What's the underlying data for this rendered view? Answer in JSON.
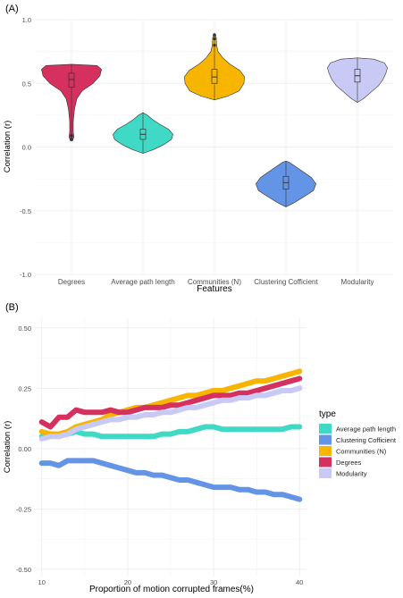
{
  "panels": [
    {
      "label": "(A)"
    },
    {
      "label": "(B)"
    }
  ],
  "chart_data": [
    {
      "panel": "(A)",
      "type": "violin",
      "title": "",
      "xlabel": "Features",
      "ylabel": "Correlation (r)",
      "ylim": [
        -1.0,
        1.0
      ],
      "yticks": [
        -1.0,
        -0.5,
        0.0,
        0.5,
        1.0
      ],
      "ytick_labels": [
        "-1.0",
        "-0.5",
        "0.0",
        "0.5",
        "1.0"
      ],
      "grid": true,
      "categories": [
        "Degrees",
        "Average path length",
        "Communities (N)",
        "Clustering Cofficient",
        "Modularity"
      ],
      "colors": [
        "#d6305f",
        "#3fd9c6",
        "#f7b500",
        "#6494e6",
        "#c9c9f5"
      ],
      "stats": [
        {
          "name": "Degrees",
          "min": 0.05,
          "q1": 0.47,
          "median": 0.53,
          "q3": 0.58,
          "max": 0.65,
          "outliers": [
            0.06,
            0.09
          ]
        },
        {
          "name": "Average path length",
          "min": -0.05,
          "q1": 0.06,
          "median": 0.1,
          "q3": 0.14,
          "max": 0.27,
          "outliers": []
        },
        {
          "name": "Communities (N)",
          "min": 0.37,
          "q1": 0.5,
          "median": 0.55,
          "q3": 0.61,
          "max": 0.89,
          "outliers": [
            0.8,
            0.85,
            0.88
          ]
        },
        {
          "name": "Clustering Cofficient",
          "min": -0.47,
          "q1": -0.33,
          "median": -0.28,
          "q3": -0.23,
          "max": -0.11,
          "outliers": []
        },
        {
          "name": "Modularity",
          "min": 0.35,
          "q1": 0.51,
          "median": 0.56,
          "q3": 0.61,
          "max": 0.7,
          "outliers": []
        }
      ],
      "density": [
        [
          [
            0.05,
            0.04
          ],
          [
            0.08,
            0.08
          ],
          [
            0.12,
            0.06
          ],
          [
            0.2,
            0.06
          ],
          [
            0.3,
            0.1
          ],
          [
            0.38,
            0.18
          ],
          [
            0.44,
            0.35
          ],
          [
            0.5,
            0.72
          ],
          [
            0.56,
            0.95
          ],
          [
            0.61,
            1.0
          ],
          [
            0.64,
            0.85
          ],
          [
            0.65,
            0.0
          ]
        ],
        [
          [
            -0.05,
            0.0
          ],
          [
            -0.02,
            0.35
          ],
          [
            0.02,
            0.7
          ],
          [
            0.06,
            0.95
          ],
          [
            0.1,
            1.0
          ],
          [
            0.14,
            0.85
          ],
          [
            0.18,
            0.55
          ],
          [
            0.22,
            0.3
          ],
          [
            0.25,
            0.15
          ],
          [
            0.27,
            0.0
          ]
        ],
        [
          [
            0.37,
            0.0
          ],
          [
            0.4,
            0.45
          ],
          [
            0.44,
            0.82
          ],
          [
            0.5,
            0.98
          ],
          [
            0.55,
            1.0
          ],
          [
            0.6,
            0.85
          ],
          [
            0.65,
            0.52
          ],
          [
            0.7,
            0.28
          ],
          [
            0.75,
            0.12
          ],
          [
            0.8,
            0.07
          ],
          [
            0.86,
            0.06
          ],
          [
            0.89,
            0.0
          ]
        ],
        [
          [
            -0.47,
            0.0
          ],
          [
            -0.44,
            0.25
          ],
          [
            -0.39,
            0.6
          ],
          [
            -0.34,
            0.92
          ],
          [
            -0.29,
            1.0
          ],
          [
            -0.24,
            0.85
          ],
          [
            -0.19,
            0.55
          ],
          [
            -0.15,
            0.3
          ],
          [
            -0.12,
            0.12
          ],
          [
            -0.11,
            0.0
          ]
        ],
        [
          [
            0.35,
            0.0
          ],
          [
            0.38,
            0.2
          ],
          [
            0.43,
            0.45
          ],
          [
            0.48,
            0.7
          ],
          [
            0.53,
            0.85
          ],
          [
            0.58,
            0.95
          ],
          [
            0.62,
            1.0
          ],
          [
            0.66,
            0.9
          ],
          [
            0.69,
            0.55
          ],
          [
            0.7,
            0.0
          ]
        ]
      ]
    },
    {
      "panel": "(B)",
      "type": "line",
      "title": "",
      "xlabel": "Proportion of motion corrupted frames(%)",
      "ylabel": "Correlation (r)",
      "xlim": [
        9.3,
        40.8
      ],
      "ylim": [
        -0.53,
        0.54
      ],
      "xticks": [
        10,
        20,
        30,
        40
      ],
      "xtick_labels": [
        "10",
        "20",
        "30",
        "40"
      ],
      "yticks": [
        -0.5,
        -0.25,
        0.0,
        0.25,
        0.5
      ],
      "ytick_labels": [
        "-0.50",
        "-0.25",
        "0.00",
        "0.25",
        "0.50"
      ],
      "grid": true,
      "legend_title": "type",
      "legend_position": "right",
      "x": [
        10,
        11,
        12,
        13,
        14,
        15,
        16,
        17,
        18,
        19,
        20,
        21,
        22,
        23,
        24,
        25,
        26,
        27,
        28,
        29,
        30,
        31,
        32,
        33,
        34,
        35,
        36,
        37,
        38,
        39,
        40
      ],
      "series": [
        {
          "name": "Average path length",
          "color": "#3fd9c6",
          "values": [
            0.05,
            0.05,
            0.06,
            0.06,
            0.07,
            0.06,
            0.06,
            0.05,
            0.05,
            0.05,
            0.05,
            0.05,
            0.05,
            0.05,
            0.06,
            0.06,
            0.07,
            0.07,
            0.08,
            0.09,
            0.09,
            0.08,
            0.08,
            0.08,
            0.08,
            0.08,
            0.08,
            0.08,
            0.08,
            0.09,
            0.09
          ]
        },
        {
          "name": "Clustering Cofficient",
          "color": "#6494e6",
          "values": [
            -0.06,
            -0.06,
            -0.07,
            -0.05,
            -0.05,
            -0.05,
            -0.05,
            -0.06,
            -0.07,
            -0.08,
            -0.09,
            -0.1,
            -0.1,
            -0.11,
            -0.11,
            -0.12,
            -0.13,
            -0.13,
            -0.14,
            -0.15,
            -0.16,
            -0.16,
            -0.16,
            -0.17,
            -0.17,
            -0.18,
            -0.18,
            -0.19,
            -0.19,
            -0.2,
            -0.21
          ]
        },
        {
          "name": "Communities (N)",
          "color": "#f7b500",
          "values": [
            0.07,
            0.06,
            0.06,
            0.07,
            0.09,
            0.1,
            0.11,
            0.12,
            0.14,
            0.15,
            0.16,
            0.17,
            0.17,
            0.18,
            0.19,
            0.2,
            0.21,
            0.22,
            0.22,
            0.23,
            0.24,
            0.24,
            0.25,
            0.26,
            0.27,
            0.28,
            0.28,
            0.29,
            0.3,
            0.31,
            0.32
          ]
        },
        {
          "name": "Degrees",
          "color": "#d6305f",
          "values": [
            0.11,
            0.09,
            0.13,
            0.13,
            0.16,
            0.15,
            0.15,
            0.15,
            0.16,
            0.15,
            0.15,
            0.16,
            0.17,
            0.17,
            0.17,
            0.18,
            0.18,
            0.19,
            0.2,
            0.21,
            0.22,
            0.22,
            0.22,
            0.23,
            0.23,
            0.24,
            0.25,
            0.26,
            0.27,
            0.28,
            0.29
          ]
        },
        {
          "name": "Modularity",
          "color": "#c9c9f5",
          "values": [
            0.04,
            0.05,
            0.05,
            0.06,
            0.08,
            0.09,
            0.1,
            0.11,
            0.12,
            0.12,
            0.13,
            0.13,
            0.14,
            0.14,
            0.15,
            0.15,
            0.16,
            0.17,
            0.17,
            0.18,
            0.19,
            0.2,
            0.2,
            0.21,
            0.21,
            0.22,
            0.22,
            0.23,
            0.24,
            0.24,
            0.25
          ]
        }
      ]
    }
  ]
}
